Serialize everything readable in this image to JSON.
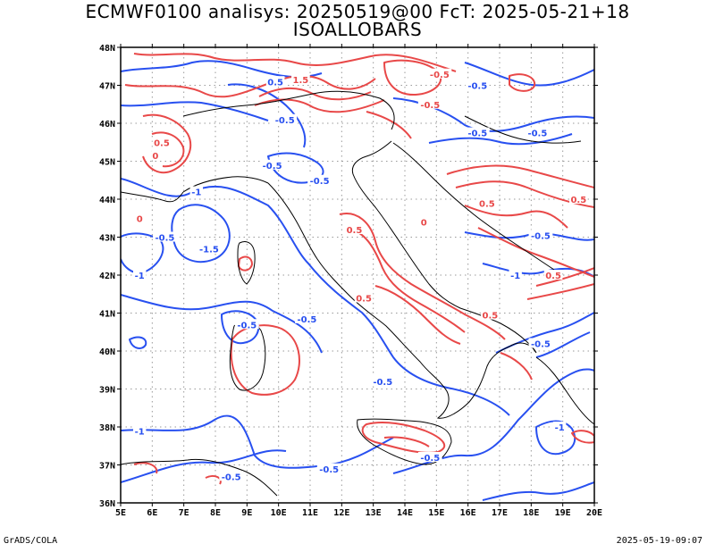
{
  "title_line1": "ECMWF0100 analisys: 20250519@00 FcT: 2025-05-21+18",
  "title_line2": "ISOALLOBARS",
  "footer_left": "GrADS/COLA",
  "footer_right": "2025-05-19-09:07",
  "colors": {
    "positive": "#e84848",
    "negative": "#2850f0",
    "grid": "#9a9a9a",
    "coast": "#000000"
  },
  "lon_labels": [
    "5E",
    "6E",
    "7E",
    "8E",
    "9E",
    "10E",
    "11E",
    "12E",
    "13E",
    "14E",
    "15E",
    "16E",
    "17E",
    "18E",
    "19E",
    "20E"
  ],
  "lat_labels": [
    "48N",
    "47N",
    "46N",
    "45N",
    "44N",
    "43N",
    "42N",
    "41N",
    "40N",
    "39N",
    "38N",
    "37N",
    "36N"
  ],
  "contour_labels": [
    {
      "text": "0.5",
      "lon": 9.9,
      "lat": 47.1,
      "sign": "neg"
    },
    {
      "text": "1.5",
      "lon": 10.7,
      "lat": 47.15,
      "sign": "pos"
    },
    {
      "text": "-0.5",
      "lon": 15.1,
      "lat": 47.3,
      "sign": "pos"
    },
    {
      "text": "-0.5",
      "lon": 16.3,
      "lat": 47.0,
      "sign": "neg"
    },
    {
      "text": "-0.5",
      "lon": 10.2,
      "lat": 46.1,
      "sign": "neg"
    },
    {
      "text": "-0.5",
      "lon": 14.8,
      "lat": 46.5,
      "sign": "pos"
    },
    {
      "text": "-0.5",
      "lon": 16.3,
      "lat": 45.75,
      "sign": "neg"
    },
    {
      "text": "-0.5",
      "lon": 18.2,
      "lat": 45.75,
      "sign": "neg"
    },
    {
      "text": "0.5",
      "lon": 6.3,
      "lat": 45.5,
      "sign": "pos"
    },
    {
      "text": "0",
      "lon": 6.1,
      "lat": 45.15,
      "sign": "pos"
    },
    {
      "text": "-0.5",
      "lon": 9.8,
      "lat": 44.9,
      "sign": "neg"
    },
    {
      "text": "-0.5",
      "lon": 11.3,
      "lat": 44.5,
      "sign": "neg"
    },
    {
      "text": "-1",
      "lon": 7.4,
      "lat": 44.2,
      "sign": "neg"
    },
    {
      "text": "0",
      "lon": 5.6,
      "lat": 43.5,
      "sign": "pos"
    },
    {
      "text": "-0.5",
      "lon": 6.4,
      "lat": 43.0,
      "sign": "neg"
    },
    {
      "text": "-1.5",
      "lon": 7.8,
      "lat": 42.7,
      "sign": "neg"
    },
    {
      "text": "-1",
      "lon": 5.6,
      "lat": 42.0,
      "sign": "neg"
    },
    {
      "text": "0.5",
      "lon": 12.4,
      "lat": 43.2,
      "sign": "pos"
    },
    {
      "text": "0",
      "lon": 14.6,
      "lat": 43.4,
      "sign": "pos"
    },
    {
      "text": "0.5",
      "lon": 16.6,
      "lat": 43.9,
      "sign": "pos"
    },
    {
      "text": "0.5",
      "lon": 19.5,
      "lat": 44.0,
      "sign": "pos"
    },
    {
      "text": "-0.5",
      "lon": 18.3,
      "lat": 43.05,
      "sign": "neg"
    },
    {
      "text": "0.5",
      "lon": 12.7,
      "lat": 41.4,
      "sign": "pos"
    },
    {
      "text": "-1",
      "lon": 17.5,
      "lat": 42.0,
      "sign": "neg"
    },
    {
      "text": "0.5",
      "lon": 18.7,
      "lat": 42.0,
      "sign": "pos"
    },
    {
      "text": "0.5",
      "lon": 16.7,
      "lat": 40.95,
      "sign": "pos"
    },
    {
      "text": "-0.5",
      "lon": 9.0,
      "lat": 40.7,
      "sign": "neg"
    },
    {
      "text": "-0.5",
      "lon": 10.9,
      "lat": 40.85,
      "sign": "neg"
    },
    {
      "text": "-0.5",
      "lon": 18.3,
      "lat": 40.2,
      "sign": "neg"
    },
    {
      "text": "-0.5",
      "lon": 13.3,
      "lat": 39.2,
      "sign": "neg"
    },
    {
      "text": "-1",
      "lon": 5.6,
      "lat": 37.9,
      "sign": "neg"
    },
    {
      "text": "-1",
      "lon": 18.9,
      "lat": 38.0,
      "sign": "neg"
    },
    {
      "text": "-0.5",
      "lon": 14.8,
      "lat": 37.2,
      "sign": "neg"
    },
    {
      "text": "-0.5",
      "lon": 8.5,
      "lat": 36.7,
      "sign": "neg"
    },
    {
      "text": "-0.5",
      "lon": 11.6,
      "lat": 36.9,
      "sign": "neg"
    }
  ]
}
